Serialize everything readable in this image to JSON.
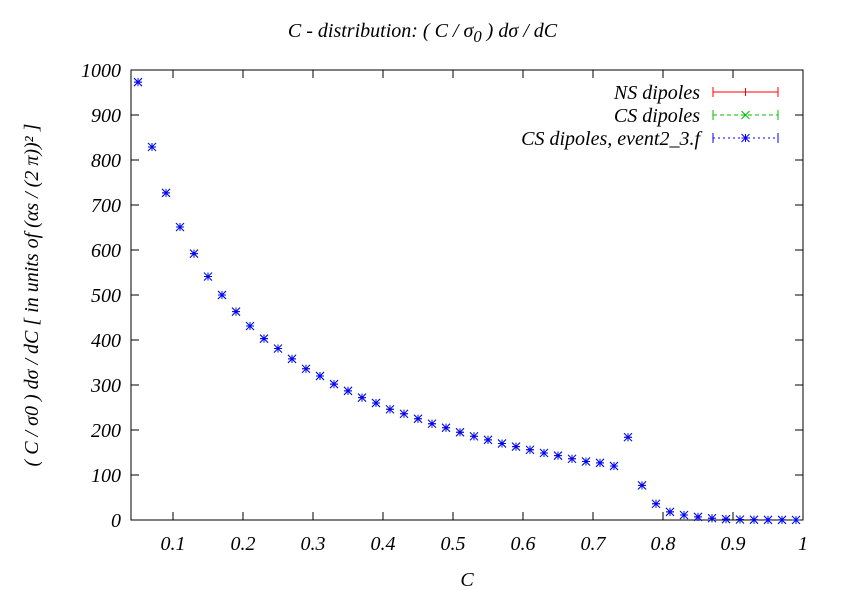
{
  "chart_data": {
    "type": "scatter",
    "title": "C - distribution:  ( C / σ",
    "title_sub": "0",
    "title_tail": " ) dσ / dC",
    "xlabel": "C",
    "ylabel": "( C / σ0 ) dσ / dC  [ in units of (αs / (2 π))² ]",
    "xlim": [
      0.04,
      1.0
    ],
    "ylim": [
      0,
      1000
    ],
    "xticks": [
      "0.1",
      "0.2",
      "0.3",
      "0.4",
      "0.5",
      "0.6",
      "0.7",
      "0.8",
      "0.9",
      "1"
    ],
    "yticks": [
      "0",
      "100",
      "200",
      "300",
      "400",
      "500",
      "600",
      "700",
      "800",
      "900",
      "1000"
    ],
    "legend_position": "top-right",
    "grid": false,
    "series": [
      {
        "name": "NS dipoles",
        "color": "#ff0000",
        "marker": "plus",
        "x": [
          0.05,
          0.07,
          0.09,
          0.11,
          0.13,
          0.15,
          0.17,
          0.19,
          0.21,
          0.23,
          0.25,
          0.27,
          0.29,
          0.31,
          0.33,
          0.35,
          0.37,
          0.39,
          0.41,
          0.43,
          0.45,
          0.47,
          0.49,
          0.51,
          0.53,
          0.55,
          0.57,
          0.59,
          0.61,
          0.63,
          0.65,
          0.67,
          0.69,
          0.71,
          0.73,
          0.75,
          0.77,
          0.79,
          0.81,
          0.83,
          0.85,
          0.87,
          0.89,
          0.91,
          0.93,
          0.95,
          0.97,
          0.99
        ],
        "y": [
          973,
          829,
          727,
          651,
          592,
          541,
          500,
          463,
          431,
          403,
          381,
          358,
          336,
          320,
          302,
          287,
          272,
          260,
          246,
          236,
          225,
          214,
          205,
          195,
          186,
          178,
          170,
          163,
          156,
          149,
          143,
          136,
          130,
          127,
          120,
          184,
          77,
          36,
          18,
          11,
          7,
          4,
          2,
          1,
          0.5,
          0.3,
          0.2,
          0.1
        ]
      },
      {
        "name": "CS dipoles",
        "color": "#00c000",
        "marker": "cross",
        "x": [
          0.05,
          0.07,
          0.09,
          0.11,
          0.13,
          0.15,
          0.17,
          0.19,
          0.21,
          0.23,
          0.25,
          0.27,
          0.29,
          0.31,
          0.33,
          0.35,
          0.37,
          0.39,
          0.41,
          0.43,
          0.45,
          0.47,
          0.49,
          0.51,
          0.53,
          0.55,
          0.57,
          0.59,
          0.61,
          0.63,
          0.65,
          0.67,
          0.69,
          0.71,
          0.73,
          0.75,
          0.77,
          0.79,
          0.81,
          0.83,
          0.85,
          0.87,
          0.89,
          0.91,
          0.93,
          0.95,
          0.97,
          0.99
        ],
        "y": [
          973,
          829,
          727,
          651,
          592,
          541,
          500,
          463,
          431,
          403,
          381,
          358,
          336,
          320,
          302,
          287,
          272,
          260,
          246,
          236,
          225,
          214,
          205,
          195,
          186,
          178,
          170,
          163,
          156,
          149,
          143,
          136,
          130,
          127,
          120,
          184,
          77,
          36,
          18,
          11,
          7,
          4,
          2,
          1,
          0.5,
          0.3,
          0.2,
          0.1
        ]
      },
      {
        "name": "CS dipoles, event2_3.f",
        "color": "#0000ff",
        "marker": "star",
        "x": [
          0.05,
          0.07,
          0.09,
          0.11,
          0.13,
          0.15,
          0.17,
          0.19,
          0.21,
          0.23,
          0.25,
          0.27,
          0.29,
          0.31,
          0.33,
          0.35,
          0.37,
          0.39,
          0.41,
          0.43,
          0.45,
          0.47,
          0.49,
          0.51,
          0.53,
          0.55,
          0.57,
          0.59,
          0.61,
          0.63,
          0.65,
          0.67,
          0.69,
          0.71,
          0.73,
          0.75,
          0.77,
          0.79,
          0.81,
          0.83,
          0.85,
          0.87,
          0.89,
          0.91,
          0.93,
          0.95,
          0.97,
          0.99
        ],
        "y": [
          973,
          829,
          727,
          651,
          592,
          541,
          500,
          463,
          431,
          403,
          381,
          358,
          336,
          320,
          302,
          287,
          272,
          260,
          246,
          236,
          225,
          214,
          205,
          195,
          186,
          178,
          170,
          163,
          156,
          149,
          143,
          136,
          130,
          127,
          120,
          184,
          77,
          36,
          18,
          11,
          7,
          4,
          2,
          1,
          0.5,
          0.3,
          0.2,
          0.1
        ]
      }
    ]
  }
}
